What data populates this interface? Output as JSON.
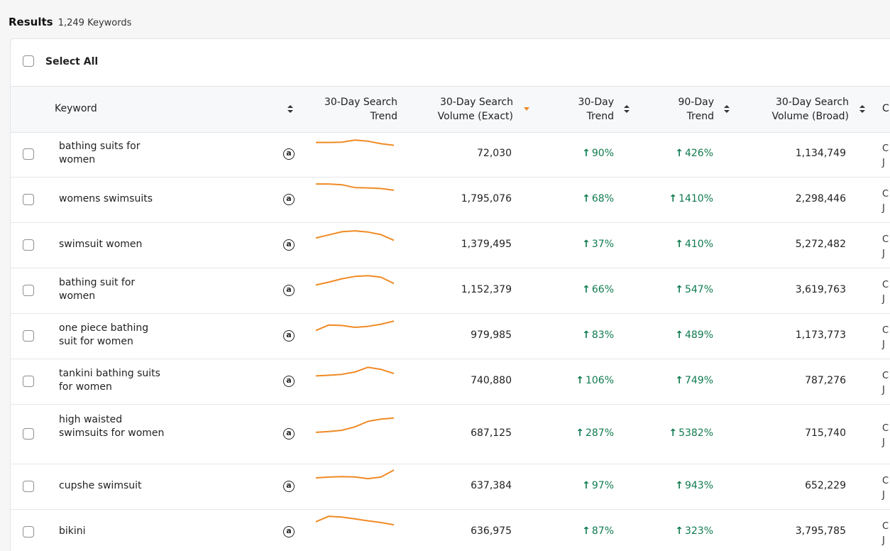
{
  "results": {
    "title": "Results",
    "count": "1,249 Keywords"
  },
  "select_all": {
    "label": "Select All"
  },
  "columns": {
    "keyword": "Keyword",
    "trend_chart": [
      "30-Day Search",
      "Trend"
    ],
    "volume_exact": [
      "30-Day Search",
      "Volume (Exact)"
    ],
    "trend30": [
      "30-Day",
      "Trend"
    ],
    "trend90": [
      "90-Day",
      "Trend"
    ],
    "volume_broad": [
      "30-Day Search",
      "Volume (Broad)"
    ],
    "next_partial": "C"
  },
  "colors": {
    "accent": "#f08a24",
    "positive": "#0f7b4f"
  },
  "amazon_icon": "amazon-icon",
  "trend_arrow": "↑",
  "rows": [
    {
      "keyword": "bathing suits for women",
      "volume_exact": "72,030",
      "trend30": "90%",
      "trend90": "426%",
      "volume_broad": "1,134,749",
      "spark": [
        0.7,
        0.7,
        0.72,
        0.85,
        0.78,
        0.62,
        0.52
      ]
    },
    {
      "keyword": "womens swimsuits",
      "volume_exact": "1,795,076",
      "trend30": "68%",
      "trend90": "1410%",
      "volume_broad": "2,298,446",
      "spark": [
        0.95,
        0.95,
        0.9,
        0.72,
        0.7,
        0.66,
        0.55
      ]
    },
    {
      "keyword": "swimsuit women",
      "volume_exact": "1,379,495",
      "trend30": "37%",
      "trend90": "410%",
      "volume_broad": "5,272,482",
      "spark": [
        0.4,
        0.6,
        0.8,
        0.86,
        0.78,
        0.62,
        0.25
      ]
    },
    {
      "keyword": "bathing suit for women",
      "volume_exact": "1,152,379",
      "trend30": "66%",
      "trend90": "547%",
      "volume_broad": "3,619,763",
      "spark": [
        0.3,
        0.48,
        0.7,
        0.85,
        0.9,
        0.8,
        0.4
      ]
    },
    {
      "keyword": "one piece bathing suit for women",
      "volume_exact": "979,985",
      "trend30": "83%",
      "trend90": "489%",
      "volume_broad": "1,173,773",
      "spark": [
        0.3,
        0.65,
        0.62,
        0.5,
        0.56,
        0.7,
        0.9
      ]
    },
    {
      "keyword": "tankini bathing suits for women",
      "volume_exact": "740,880",
      "trend30": "106%",
      "trend90": "749%",
      "volume_broad": "787,276",
      "spark": [
        0.3,
        0.34,
        0.4,
        0.55,
        0.85,
        0.72,
        0.45
      ]
    },
    {
      "keyword": "high waisted swimsuits for women",
      "volume_exact": "687,125",
      "trend30": "287%",
      "trend90": "5382%",
      "volume_broad": "715,740",
      "spark": [
        0.05,
        0.1,
        0.18,
        0.4,
        0.75,
        0.9,
        0.97
      ]
    },
    {
      "keyword": "cupshe swimsuit",
      "volume_exact": "637,384",
      "trend30": "97%",
      "trend90": "943%",
      "volume_broad": "652,229",
      "spark": [
        0.5,
        0.55,
        0.58,
        0.56,
        0.45,
        0.55,
        1.0
      ]
    },
    {
      "keyword": "bikini",
      "volume_exact": "636,975",
      "trend30": "87%",
      "trend90": "323%",
      "volume_broad": "3,795,785",
      "spark": [
        0.6,
        0.95,
        0.9,
        0.78,
        0.66,
        0.55,
        0.4
      ]
    }
  ]
}
